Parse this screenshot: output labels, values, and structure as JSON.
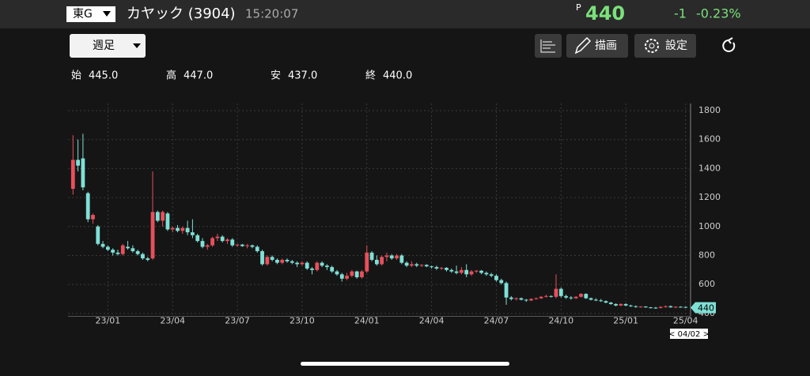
{
  "header": {
    "market": "東G",
    "name": "カヤック (3904)",
    "time": "15:20:07",
    "price_prefix": "P",
    "price": "440",
    "change": "-1",
    "change_pct": "-0.23%"
  },
  "toolbar": {
    "period": "週足",
    "draw": "描画",
    "settings": "設定"
  },
  "ohlc_info": [
    {
      "label": "始",
      "value": "445.0"
    },
    {
      "label": "高",
      "value": "447.0"
    },
    {
      "label": "安",
      "value": "437.0"
    },
    {
      "label": "終",
      "value": "440.0"
    }
  ],
  "chart_data": {
    "type": "candlestick",
    "up_color": "#e8505b",
    "down_color": "#7fe0d6",
    "xlim": [
      -1,
      124
    ],
    "ylim": [
      380,
      1800
    ],
    "yticks": [
      400,
      600,
      800,
      1000,
      1200,
      1400,
      1600,
      1800
    ],
    "xticks": [
      {
        "value": 7,
        "label": "23/01"
      },
      {
        "value": 20,
        "label": "23/04"
      },
      {
        "value": 33,
        "label": "23/07"
      },
      {
        "value": 46,
        "label": "23/10"
      },
      {
        "value": 59,
        "label": "24/01"
      },
      {
        "value": 72,
        "label": "24/04"
      },
      {
        "value": 85,
        "label": "24/07"
      },
      {
        "value": 98,
        "label": "24/10"
      },
      {
        "value": 111,
        "label": "25/01"
      },
      {
        "value": 123,
        "label": "25/04"
      }
    ],
    "last_label": "440",
    "cursor_label": "< 04/02 >",
    "ohlc": [
      [
        1260,
        1630,
        1220,
        1460
      ],
      [
        1460,
        1600,
        1380,
        1420
      ],
      [
        1470,
        1640,
        1250,
        1270
      ],
      [
        1230,
        1240,
        1030,
        1050
      ],
      [
        1050,
        1090,
        1020,
        1080
      ],
      [
        1000,
        1010,
        870,
        880
      ],
      [
        880,
        900,
        850,
        860
      ],
      [
        860,
        870,
        830,
        840
      ],
      [
        840,
        850,
        800,
        820
      ],
      [
        820,
        840,
        800,
        810
      ],
      [
        810,
        880,
        800,
        870
      ],
      [
        860,
        900,
        840,
        850
      ],
      [
        850,
        870,
        820,
        830
      ],
      [
        830,
        840,
        800,
        810
      ],
      [
        810,
        820,
        770,
        780
      ],
      [
        780,
        790,
        760,
        770
      ],
      [
        780,
        1380,
        770,
        1100
      ],
      [
        1100,
        1110,
        1030,
        1040
      ],
      [
        1040,
        1110,
        1000,
        1100
      ],
      [
        1090,
        1100,
        970,
        980
      ],
      [
        980,
        1000,
        960,
        990
      ],
      [
        990,
        1010,
        960,
        970
      ],
      [
        970,
        1000,
        950,
        990
      ],
      [
        990,
        1040,
        940,
        960
      ],
      [
        960,
        1050,
        920,
        940
      ],
      [
        940,
        950,
        890,
        900
      ],
      [
        900,
        920,
        850,
        860
      ],
      [
        860,
        880,
        840,
        870
      ],
      [
        870,
        930,
        860,
        920
      ],
      [
        920,
        950,
        900,
        930
      ],
      [
        930,
        940,
        890,
        900
      ],
      [
        900,
        920,
        880,
        910
      ],
      [
        910,
        920,
        860,
        870
      ],
      [
        870,
        880,
        860,
        875
      ],
      [
        875,
        880,
        860,
        865
      ],
      [
        865,
        880,
        850,
        870
      ],
      [
        870,
        875,
        850,
        860
      ],
      [
        860,
        870,
        820,
        830
      ],
      [
        830,
        840,
        730,
        740
      ],
      [
        740,
        800,
        730,
        790
      ],
      [
        790,
        800,
        760,
        770
      ],
      [
        770,
        780,
        740,
        750
      ],
      [
        750,
        780,
        740,
        770
      ],
      [
        770,
        780,
        750,
        760
      ],
      [
        760,
        770,
        740,
        750
      ],
      [
        750,
        760,
        720,
        740
      ],
      [
        740,
        760,
        730,
        750
      ],
      [
        750,
        760,
        700,
        710
      ],
      [
        710,
        720,
        670,
        700
      ],
      [
        700,
        760,
        690,
        750
      ],
      [
        750,
        760,
        720,
        730
      ],
      [
        730,
        740,
        700,
        720
      ],
      [
        720,
        730,
        680,
        690
      ],
      [
        690,
        700,
        660,
        670
      ],
      [
        670,
        680,
        620,
        640
      ],
      [
        640,
        680,
        630,
        660
      ],
      [
        660,
        700,
        650,
        690
      ],
      [
        690,
        695,
        640,
        650
      ],
      [
        650,
        700,
        640,
        690
      ],
      [
        690,
        870,
        680,
        820
      ],
      [
        820,
        830,
        760,
        770
      ],
      [
        770,
        800,
        730,
        740
      ],
      [
        740,
        800,
        730,
        790
      ],
      [
        790,
        820,
        760,
        800
      ],
      [
        800,
        810,
        770,
        780
      ],
      [
        780,
        810,
        770,
        800
      ],
      [
        800,
        810,
        740,
        750
      ],
      [
        750,
        760,
        720,
        730
      ],
      [
        730,
        760,
        720,
        740
      ],
      [
        740,
        750,
        720,
        730
      ],
      [
        730,
        740,
        720,
        735
      ],
      [
        735,
        740,
        720,
        725
      ],
      [
        725,
        730,
        710,
        720
      ],
      [
        720,
        730,
        700,
        710
      ],
      [
        710,
        720,
        700,
        715
      ],
      [
        715,
        720,
        690,
        700
      ],
      [
        700,
        710,
        680,
        690
      ],
      [
        690,
        730,
        670,
        680
      ],
      [
        680,
        720,
        670,
        700
      ],
      [
        700,
        740,
        650,
        670
      ],
      [
        670,
        700,
        660,
        690
      ],
      [
        690,
        700,
        680,
        695
      ],
      [
        695,
        700,
        670,
        680
      ],
      [
        680,
        690,
        660,
        670
      ],
      [
        670,
        680,
        650,
        660
      ],
      [
        660,
        670,
        620,
        630
      ],
      [
        630,
        640,
        600,
        610
      ],
      [
        610,
        620,
        460,
        510
      ],
      [
        510,
        520,
        490,
        500
      ],
      [
        500,
        510,
        490,
        505
      ],
      [
        505,
        510,
        490,
        495
      ],
      [
        495,
        500,
        480,
        490
      ],
      [
        490,
        505,
        485,
        500
      ],
      [
        500,
        510,
        495,
        505
      ],
      [
        505,
        520,
        500,
        515
      ],
      [
        515,
        530,
        510,
        520
      ],
      [
        520,
        525,
        510,
        515
      ],
      [
        515,
        670,
        505,
        570
      ],
      [
        570,
        580,
        510,
        520
      ],
      [
        520,
        530,
        500,
        510
      ],
      [
        510,
        520,
        495,
        505
      ],
      [
        505,
        520,
        500,
        515
      ],
      [
        515,
        540,
        510,
        535
      ],
      [
        535,
        540,
        500,
        505
      ],
      [
        505,
        510,
        490,
        495
      ],
      [
        495,
        505,
        485,
        490
      ],
      [
        490,
        500,
        480,
        485
      ],
      [
        485,
        490,
        470,
        475
      ],
      [
        475,
        480,
        460,
        465
      ],
      [
        465,
        470,
        450,
        455
      ],
      [
        455,
        470,
        450,
        465
      ],
      [
        465,
        470,
        450,
        455
      ],
      [
        455,
        460,
        445,
        450
      ],
      [
        450,
        455,
        440,
        445
      ],
      [
        445,
        450,
        440,
        448
      ],
      [
        448,
        450,
        440,
        442
      ],
      [
        442,
        445,
        435,
        440
      ],
      [
        440,
        445,
        432,
        438
      ],
      [
        438,
        450,
        435,
        445
      ],
      [
        445,
        455,
        440,
        450
      ],
      [
        450,
        455,
        440,
        442
      ],
      [
        442,
        450,
        438,
        446
      ],
      [
        446,
        450,
        440,
        444
      ],
      [
        445,
        447,
        437,
        440
      ]
    ]
  }
}
